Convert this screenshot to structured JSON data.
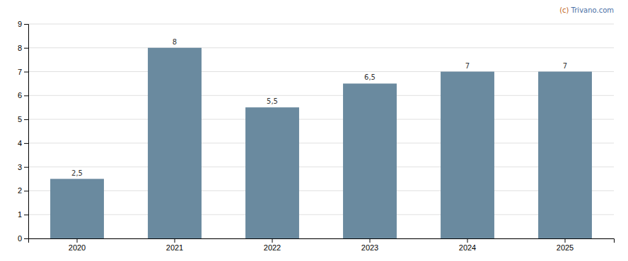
{
  "chart_data": {
    "type": "bar",
    "categories": [
      "2020",
      "2021",
      "2022",
      "2023",
      "2024",
      "2025"
    ],
    "values": [
      2.5,
      8.0,
      5.5,
      6.5,
      7.0,
      7.0
    ],
    "value_labels": [
      "2,5",
      "8",
      "5,5",
      "6,5",
      "7",
      "7"
    ],
    "data_labels": true,
    "color": "#6a8a9f",
    "ylim": [
      0,
      9
    ],
    "yticks": [
      0,
      1,
      2,
      3,
      4,
      5,
      6,
      7,
      8,
      9
    ],
    "grid": true,
    "annotations": [
      {
        "text": "(c) ",
        "color": "#c0651a"
      },
      {
        "text": "Trivano.com",
        "color": "#4a6fa5"
      }
    ]
  }
}
